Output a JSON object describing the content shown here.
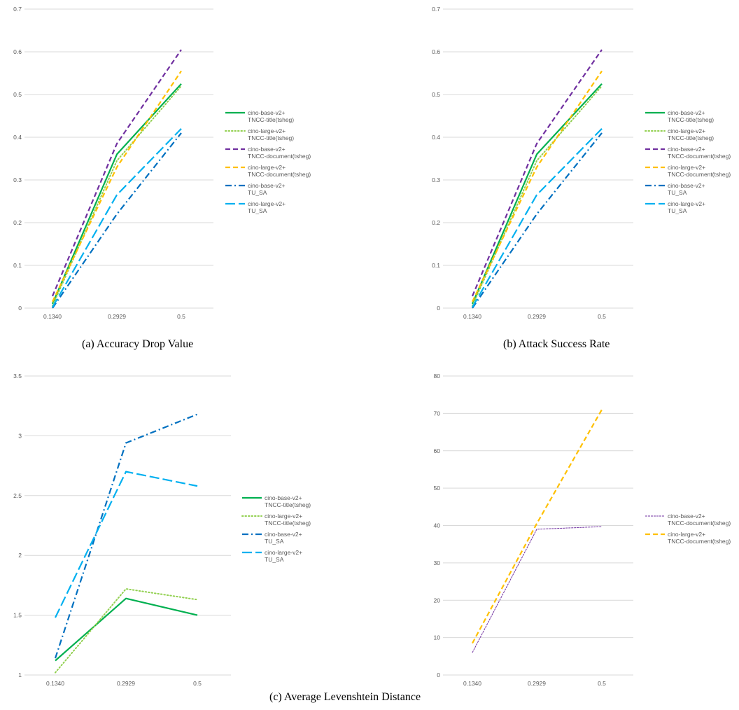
{
  "captions": {
    "a": "(a) Accuracy Drop Value",
    "b": "(b) Attack Success Rate",
    "c": "(c) Average Levenshtein Distance"
  },
  "chart_data": [
    {
      "id": "a",
      "type": "line",
      "categories": [
        "0.1340",
        "0.2929",
        "0.5"
      ],
      "ylim": [
        0,
        0.7
      ],
      "yticks": [
        "0",
        "0.1",
        "0.2",
        "0.3",
        "0.4",
        "0.5",
        "0.6",
        "0.7"
      ],
      "grid": true,
      "legend_position": "right",
      "series": [
        {
          "name": [
            "cino-base-v2+",
            "TNCC-title(tsheg)"
          ],
          "values": [
            0.01,
            0.36,
            0.525
          ],
          "color": "#00b050",
          "style": "solid"
        },
        {
          "name": [
            "cino-large-v2+",
            "TNCC-title(tsheg)"
          ],
          "values": [
            0.005,
            0.345,
            0.52
          ],
          "color": "#92d050",
          "style": "dotted"
        },
        {
          "name": [
            "cino-base-v2+",
            "TNCC-document(tsheg)"
          ],
          "values": [
            0.028,
            0.385,
            0.605
          ],
          "color": "#7030a0",
          "style": "dashed"
        },
        {
          "name": [
            "cino-large-v2+",
            "TNCC-document(tsheg)"
          ],
          "values": [
            0.015,
            0.33,
            0.555
          ],
          "color": "#ffc000",
          "style": "dashed"
        },
        {
          "name": [
            "cino-base-v2+",
            "TU_SA"
          ],
          "values": [
            0.0,
            0.22,
            0.41
          ],
          "color": "#0070c0",
          "style": "dashdot"
        },
        {
          "name": [
            "cino-large-v2+",
            "TU_SA"
          ],
          "values": [
            0.002,
            0.265,
            0.42
          ],
          "color": "#00b0f0",
          "style": "longdash"
        }
      ]
    },
    {
      "id": "b",
      "type": "line",
      "categories": [
        "0.1340",
        "0.2929",
        "0.5"
      ],
      "ylim": [
        0,
        0.7
      ],
      "yticks": [
        "0",
        "0.1",
        "0.2",
        "0.3",
        "0.4",
        "0.5",
        "0.6",
        "0.7"
      ],
      "grid": true,
      "legend_position": "right",
      "series": [
        {
          "name": [
            "cino-base-v2+",
            "TNCC-title(tsheg)"
          ],
          "values": [
            0.01,
            0.36,
            0.525
          ],
          "color": "#00b050",
          "style": "solid"
        },
        {
          "name": [
            "cino-large-v2+",
            "TNCC-title(tsheg)"
          ],
          "values": [
            0.005,
            0.345,
            0.52
          ],
          "color": "#92d050",
          "style": "dotted"
        },
        {
          "name": [
            "cino-base-v2+",
            "TNCC-document(tsheg)"
          ],
          "values": [
            0.028,
            0.385,
            0.605
          ],
          "color": "#7030a0",
          "style": "dashed"
        },
        {
          "name": [
            "cino-large-v2+",
            "TNCC-document(tsheg)"
          ],
          "values": [
            0.015,
            0.33,
            0.555
          ],
          "color": "#ffc000",
          "style": "dashed"
        },
        {
          "name": [
            "cino-base-v2+",
            "TU_SA"
          ],
          "values": [
            0.0,
            0.22,
            0.41
          ],
          "color": "#0070c0",
          "style": "dashdot"
        },
        {
          "name": [
            "cino-large-v2+",
            "TU_SA"
          ],
          "values": [
            0.002,
            0.265,
            0.42
          ],
          "color": "#00b0f0",
          "style": "longdash"
        }
      ]
    },
    {
      "id": "c1",
      "type": "line",
      "categories": [
        "0.1340",
        "0.2929",
        "0.5"
      ],
      "ylim": [
        1,
        3.5
      ],
      "yticks": [
        "1",
        "1.5",
        "2",
        "2.5",
        "3",
        "3.5"
      ],
      "grid": true,
      "legend_position": "right",
      "series": [
        {
          "name": [
            "cino-base-v2+",
            "TNCC-title(tsheg)"
          ],
          "values": [
            1.12,
            1.64,
            1.5
          ],
          "color": "#00b050",
          "style": "solid"
        },
        {
          "name": [
            "cino-large-v2+",
            "TNCC-title(tsheg)"
          ],
          "values": [
            1.02,
            1.72,
            1.63
          ],
          "color": "#92d050",
          "style": "dotted"
        },
        {
          "name": [
            "cino-base-v2+",
            "TU_SA"
          ],
          "values": [
            1.14,
            2.94,
            3.18
          ],
          "color": "#0070c0",
          "style": "dashdot"
        },
        {
          "name": [
            "cino-large-v2+",
            "TU_SA"
          ],
          "values": [
            1.48,
            2.7,
            2.58
          ],
          "color": "#00b0f0",
          "style": "longdash"
        }
      ]
    },
    {
      "id": "c2",
      "type": "line",
      "categories": [
        "0.1340",
        "0.2929",
        "0.5"
      ],
      "ylim": [
        0,
        80
      ],
      "yticks": [
        "0",
        "10",
        "20",
        "30",
        "40",
        "50",
        "60",
        "70",
        "80"
      ],
      "grid": true,
      "legend_position": "right",
      "series": [
        {
          "name": [
            "cino-base-v2+",
            "TNCC-document(tsheg)"
          ],
          "values": [
            6,
            39,
            39.7
          ],
          "color": "#7030a0",
          "style": "thin"
        },
        {
          "name": [
            "cino-large-v2+",
            "TNCC-document(tsheg)"
          ],
          "values": [
            8.5,
            40.5,
            71
          ],
          "color": "#ffc000",
          "style": "dashed"
        }
      ]
    }
  ]
}
